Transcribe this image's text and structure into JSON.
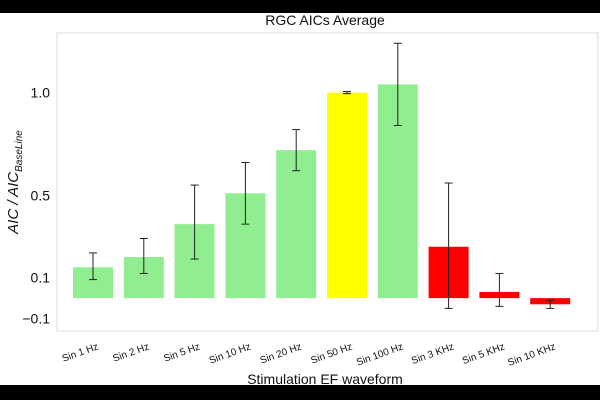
{
  "chart_data": {
    "type": "bar",
    "title": "RGC AICs Average",
    "xlabel": "Stimulation EF waveform",
    "ylabel_main": "AIC / AIC",
    "ylabel_sub": "BaseLine",
    "yticks": [
      1.0,
      0.5,
      0.1,
      -0.1
    ],
    "ytick_labels": [
      "1.0",
      "0.5",
      "0.1",
      "−0.1"
    ],
    "ylim": [
      -0.16,
      1.29
    ],
    "grid": false,
    "categories": [
      "Sin 1 Hz",
      "Sin 2 Hz",
      "Sin 5 Hz",
      "Sin 10 Hz",
      "Sin 20 Hz",
      "Sin 50 Hz",
      "Sin 100 Hz",
      "Sin 3 KHz",
      "Sin 5 KHz",
      "Sin 10 KHz"
    ],
    "values": [
      0.15,
      0.2,
      0.36,
      0.51,
      0.72,
      1.0,
      1.04,
      0.25,
      0.03,
      -0.03
    ],
    "err_low": [
      0.09,
      0.12,
      0.19,
      0.36,
      0.62,
      0.995,
      0.84,
      -0.05,
      -0.04,
      -0.05
    ],
    "err_high": [
      0.22,
      0.29,
      0.55,
      0.66,
      0.82,
      1.005,
      1.24,
      0.56,
      0.12,
      -0.01
    ],
    "colors": [
      "#90ee90",
      "#90ee90",
      "#90ee90",
      "#90ee90",
      "#90ee90",
      "#ffff00",
      "#90ee90",
      "#ff0000",
      "#ff0000",
      "#ff0000"
    ]
  }
}
